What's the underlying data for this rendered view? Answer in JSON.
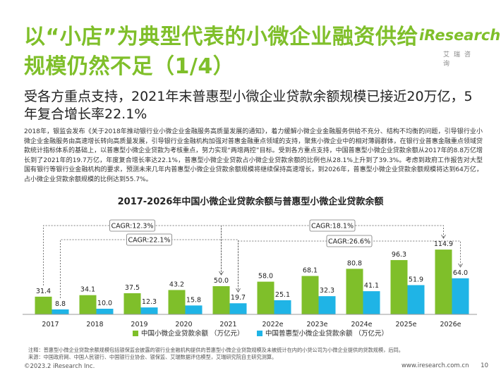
{
  "page_title": "以“小店”为典型代表的小微企业融资供给规模仍然不足（1/4）",
  "logo": {
    "text": "iResearch",
    "sub": "艾瑞咨询"
  },
  "subtitle": "受各方重点支持，2021年末普惠型小微企业贷款余额规模已接近20万亿，5年复合增长率22.1%",
  "body_text": "2018年，银监会发布《关于2018年推动银行业小微企业金融服务高质量发展的通知》，着力缓解小微企业金融服务供给不充分、结构不均衡的问题，引导银行业小微企业金融服务由高速增长转向高质量发展，引导银行业金融机构加强对普惠金融重点领域的支持，聚焦小微企业中的相对薄弱群体，在银行业普惠金融重点领域贷款统计指标体系的基础上，以普惠型小微企业贷款为考核重点，努力实现“两增两控”目标。受到各方重点支持，中国普惠型小微企业贷款余额从2017年的8.8万亿增长到了2021年的19.7万亿，年度复合增长率达22.1%，普惠型小微企业贷款占小微企业贷款余额的比例也从28.1%上升到了39.3%。考虑到政府工作报告对大型国有银行等银行业金融机构的要求，预测未来几年内普惠型小微企业贷款余额规模将继续保持高速增长，到2026年，普惠型小微企业贷款余额规模将达到64万亿，占小微企业贷款余额规模的比例达到55.7%。",
  "chart_data": {
    "type": "bar",
    "title": "2017-2026年中国小微企业贷款余额与普惠型小微企业贷款余额",
    "categories": [
      "2017",
      "2018",
      "2019",
      "2020",
      "2021",
      "2022e",
      "2023e",
      "2024e",
      "2025e",
      "2026e"
    ],
    "series": [
      {
        "name": "中国小微企业贷款余额 （万亿元）",
        "color": "#7fbf2a",
        "values": [
          31.4,
          34.1,
          37.5,
          43.2,
          50.0,
          58.0,
          68.1,
          80.8,
          96.3,
          114.9
        ]
      },
      {
        "name": "中国普惠型小微企业贷款余额 （万亿元）",
        "color": "#1fb4e6",
        "values": [
          8.8,
          10.0,
          12.3,
          15.8,
          19.7,
          25.1,
          32.3,
          41.1,
          51.9,
          64.0
        ]
      }
    ],
    "ylim": [
      0,
      120
    ],
    "grid": false,
    "legend_position": "bottom",
    "annotations": [
      {
        "label": "CAGR:12.3%",
        "series": 0,
        "from": "2017",
        "to": "2021"
      },
      {
        "label": "CAGR:22.1%",
        "series": 1,
        "from": "2017",
        "to": "2021"
      },
      {
        "label": "CAGR:18.1%",
        "series": 0,
        "from": "2021",
        "to": "2026e"
      },
      {
        "label": "CAGR:26.6%",
        "series": 1,
        "from": "2021",
        "to": "2026e"
      }
    ]
  },
  "footnote_1": "注释：普惠型小微企业贷款余额规模包括银保监会披露的银行业金融机构提供的普惠型小微企业贷款规模及未被统计在内的小贷公司为小微企业提供的贷款规模，后同。",
  "footnote_2": "来源：中国政府网、中国人民银行、中国银行业协会、银保监、艾瑞数据评估模型，艾瑞研究院自主研究测算。",
  "footer": {
    "copyright": "©2023.2 iResearch Inc.",
    "website": "www.iresearch.com.cn",
    "page_number": "10"
  }
}
